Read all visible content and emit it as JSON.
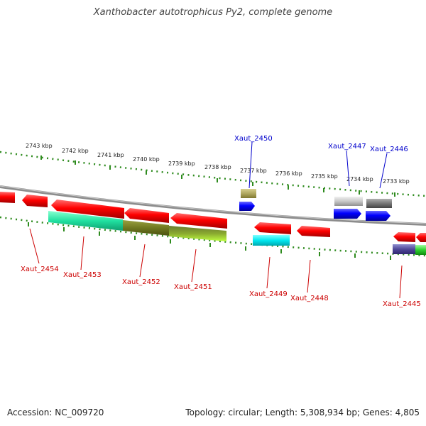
{
  "title": "Xanthobacter autotrophicus Py2, complete genome",
  "footer": {
    "accession": "Accession: NC_009720",
    "summary": "Topology: circular; Length: 5,308,934 bp; Genes: 4,805"
  },
  "colors": {
    "backbone": "#8c8c8c",
    "tick": "#2e8b1e",
    "label_forward": "#0000cc",
    "label_reverse": "#cc0000"
  },
  "scale_ticks": [
    "2743 kbp",
    "2742 kbp",
    "2741 kbp",
    "2740 kbp",
    "2739 kbp",
    "2738 kbp",
    "2737 kbp",
    "2736 kbp",
    "2735 kbp",
    "2734 kbp",
    "2733 kbp"
  ],
  "gene_labels_forward": [
    "Xaut_2450",
    "Xaut_2447",
    "Xaut_2446"
  ],
  "gene_labels_reverse": [
    "Xaut_2454",
    "Xaut_2453",
    "Xaut_2452",
    "Xaut_2451",
    "Xaut_2449",
    "Xaut_2448",
    "Xaut_2445"
  ]
}
